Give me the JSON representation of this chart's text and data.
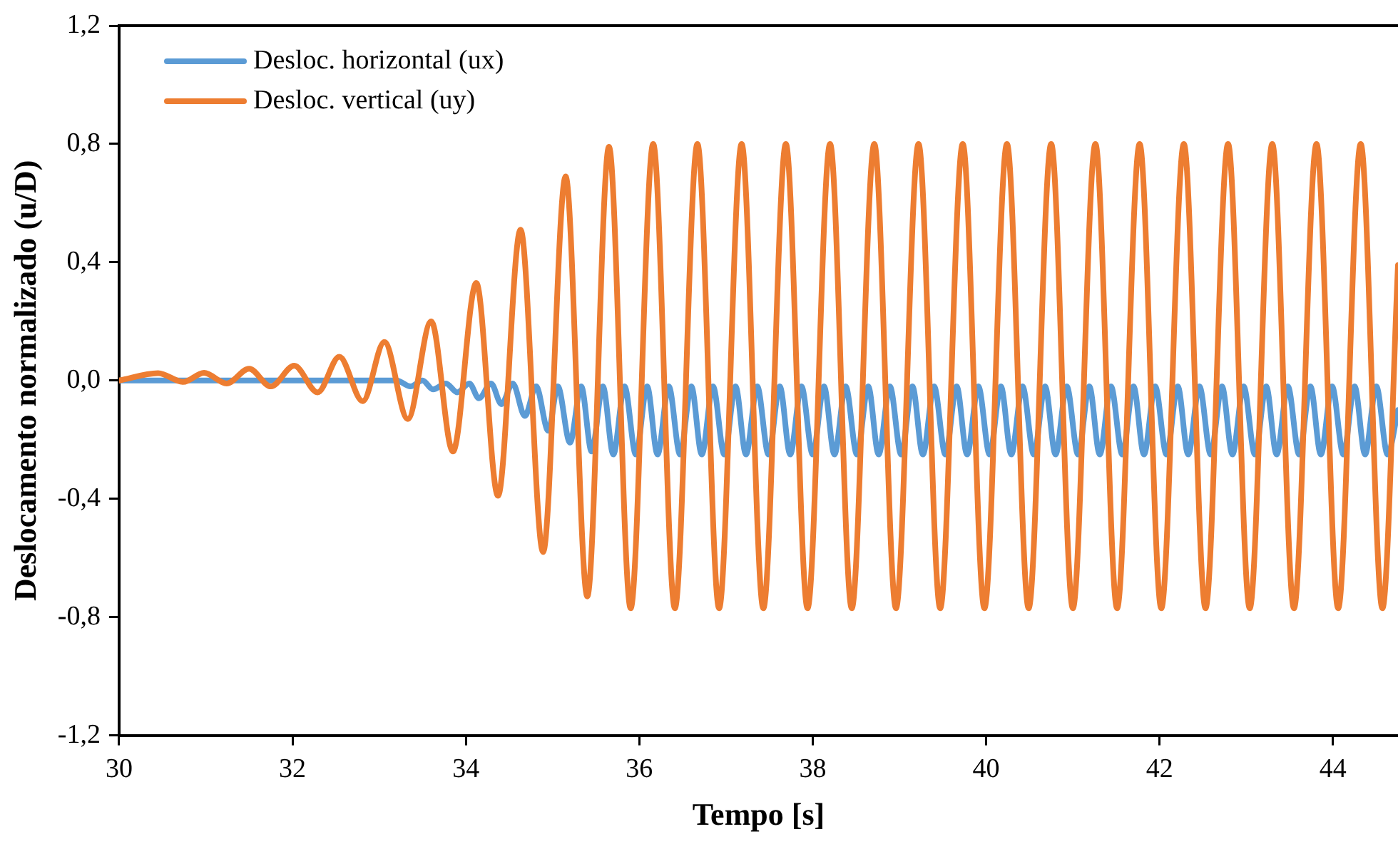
{
  "chart_data": {
    "type": "line",
    "xlabel": "Tempo [s]",
    "ylabel": "Deslocamento normalizado (u/D)",
    "xlim": [
      30,
      44.75
    ],
    "xticks": [
      30,
      32,
      34,
      36,
      38,
      40,
      42,
      44
    ],
    "ylim": [
      -1.2,
      1.2
    ],
    "yticks": [
      {
        "value": -1.2,
        "label": "-1,2"
      },
      {
        "value": -0.8,
        "label": "-0,8"
      },
      {
        "value": -0.4,
        "label": "-0,4"
      },
      {
        "value": 0,
        "label": "0,0"
      },
      {
        "value": 0.4,
        "label": "0,4"
      },
      {
        "value": 0.8,
        "label": "0,8"
      },
      {
        "value": 1.2,
        "label": "1,2"
      }
    ],
    "grid": false,
    "legend": "top left",
    "marker": "none",
    "line_style": "solid",
    "series": [
      {
        "name": "Desloc. horizontal (ux)",
        "color": "#5b9bd5",
        "x": [
          30,
          33.2,
          33.36,
          33.5,
          33.62,
          33.77,
          33.9,
          34.04,
          34.15,
          34.29,
          34.41,
          34.54,
          34.68,
          34.81,
          34.95,
          35.06,
          35.2,
          35.33,
          35.45,
          35.58,
          35.7,
          35.83,
          35.96,
          36.09,
          36.21,
          36.34,
          36.47,
          36.6,
          36.72,
          36.85,
          36.98,
          37.11,
          37.23,
          37.36,
          37.49,
          37.62,
          37.74,
          37.87,
          38,
          38.13,
          38.25,
          38.38,
          38.51,
          38.64,
          38.76,
          38.89,
          39.02,
          39.15,
          39.27,
          39.4,
          39.53,
          39.66,
          39.78,
          39.91,
          40.04,
          40.17,
          40.29,
          40.42,
          40.55,
          40.68,
          40.8,
          40.93,
          41.06,
          41.19,
          41.31,
          41.44,
          41.57,
          41.7,
          41.82,
          41.95,
          42.08,
          42.21,
          42.33,
          42.46,
          42.59,
          42.72,
          42.84,
          42.97,
          43.1,
          43.23,
          43.35,
          43.48,
          43.61,
          43.74,
          43.86,
          43.99,
          44.12,
          44.25,
          44.37,
          44.5,
          44.63,
          44.75
        ],
        "values": [
          0,
          0,
          -0.02,
          0,
          -0.03,
          -0.01,
          -0.04,
          -0.01,
          -0.06,
          -0.01,
          -0.08,
          -0.01,
          -0.12,
          -0.02,
          -0.17,
          -0.02,
          -0.21,
          -0.02,
          -0.24,
          -0.02,
          -0.25,
          -0.02,
          -0.25,
          -0.02,
          -0.25,
          -0.02,
          -0.25,
          -0.02,
          -0.25,
          -0.02,
          -0.25,
          -0.02,
          -0.25,
          -0.02,
          -0.25,
          -0.02,
          -0.25,
          -0.02,
          -0.25,
          -0.02,
          -0.25,
          -0.02,
          -0.25,
          -0.02,
          -0.25,
          -0.02,
          -0.25,
          -0.02,
          -0.25,
          -0.02,
          -0.25,
          -0.02,
          -0.25,
          -0.02,
          -0.25,
          -0.02,
          -0.25,
          -0.02,
          -0.25,
          -0.02,
          -0.25,
          -0.02,
          -0.25,
          -0.02,
          -0.25,
          -0.02,
          -0.25,
          -0.02,
          -0.25,
          -0.02,
          -0.25,
          -0.02,
          -0.25,
          -0.02,
          -0.25,
          -0.02,
          -0.25,
          -0.02,
          -0.25,
          -0.02,
          -0.25,
          -0.02,
          -0.25,
          -0.02,
          -0.25,
          -0.02,
          -0.25,
          -0.02,
          -0.25,
          -0.02,
          -0.25,
          -0.1
        ]
      },
      {
        "name": "Desloc. vertical (uy)",
        "color": "#ed7d31",
        "x": [
          30,
          30.45,
          30.74,
          30.98,
          31.24,
          31.5,
          31.75,
          32.02,
          32.29,
          32.54,
          32.81,
          33.06,
          33.33,
          33.6,
          33.85,
          34.12,
          34.37,
          34.63,
          34.89,
          35.15,
          35.4,
          35.65,
          35.9,
          36.16,
          36.41,
          36.67,
          36.92,
          37.18,
          37.43,
          37.69,
          37.94,
          38.2,
          38.45,
          38.71,
          38.96,
          39.22,
          39.47,
          39.73,
          39.98,
          40.24,
          40.49,
          40.75,
          41,
          41.26,
          41.51,
          41.77,
          42.02,
          42.28,
          42.53,
          42.79,
          43.04,
          43.3,
          43.55,
          43.81,
          44.06,
          44.32,
          44.57,
          44.75
        ],
        "values": [
          0,
          0.025,
          -0.005,
          0.026,
          -0.01,
          0.04,
          -0.02,
          0.05,
          -0.04,
          0.08,
          -0.07,
          0.13,
          -0.13,
          0.2,
          -0.24,
          0.33,
          -0.39,
          0.51,
          -0.58,
          0.69,
          -0.73,
          0.79,
          -0.77,
          0.8,
          -0.77,
          0.8,
          -0.77,
          0.8,
          -0.77,
          0.8,
          -0.77,
          0.8,
          -0.77,
          0.8,
          -0.77,
          0.8,
          -0.77,
          0.8,
          -0.77,
          0.8,
          -0.77,
          0.8,
          -0.77,
          0.8,
          -0.77,
          0.8,
          -0.77,
          0.8,
          -0.77,
          0.8,
          -0.77,
          0.8,
          -0.77,
          0.8,
          -0.77,
          0.8,
          -0.77,
          0.39
        ]
      }
    ]
  }
}
